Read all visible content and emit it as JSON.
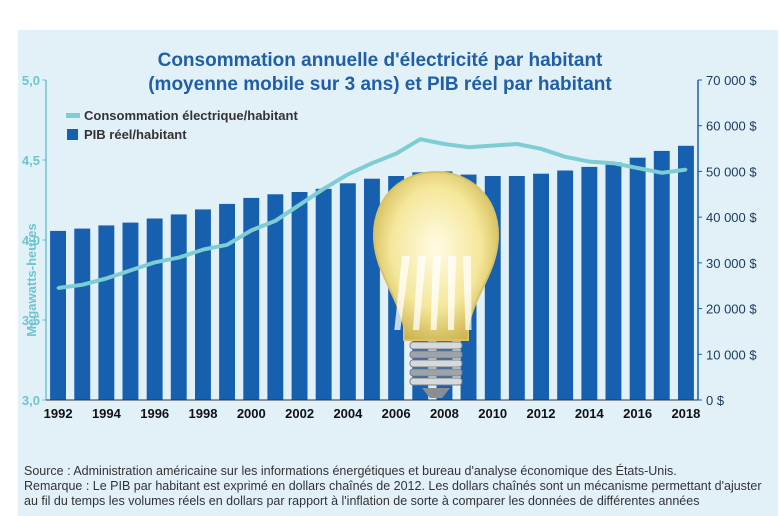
{
  "chart_data": {
    "type": "bar+line",
    "title_lines": [
      "Consommation annuelle d'électricité par habitant",
      "(moyenne mobile sur 3 ans) et PIB réel par habitant"
    ],
    "ylabel_left": "Mégawatts-heures",
    "left_ticks": [
      "3,0",
      "3,5",
      "4,0",
      "4,5",
      "5,0"
    ],
    "ylim_left": [
      3.0,
      5.0
    ],
    "right_ticks": [
      "0 $",
      "10 000 $",
      "20 000 $",
      "30 000 $",
      "40 000 $",
      "50 000 $",
      "60 000 $",
      "70 000 $"
    ],
    "ylim_right": [
      0,
      70000
    ],
    "x_tick_labels": [
      "1992",
      "1994",
      "1996",
      "1998",
      "2000",
      "2002",
      "2004",
      "2006",
      "2008",
      "2010",
      "2012",
      "2014",
      "2016",
      "2018"
    ],
    "years": [
      1992,
      1993,
      1994,
      1995,
      1996,
      1997,
      1998,
      1999,
      2000,
      2001,
      2002,
      2003,
      2004,
      2005,
      2006,
      2007,
      2008,
      2009,
      2010,
      2011,
      2012,
      2013,
      2014,
      2015,
      2016,
      2017,
      2018
    ],
    "legend_placement": "top-left",
    "colors": {
      "bars": "#1760b0",
      "line": "#7fcdd4",
      "left_axis": "#6fc4cf",
      "title": "#1f5ea8"
    },
    "series": [
      {
        "name": "Consommation électrique/habitant",
        "kind": "line",
        "axis": "left",
        "values": [
          3.7,
          3.72,
          3.76,
          3.81,
          3.86,
          3.89,
          3.94,
          3.97,
          4.06,
          4.12,
          4.22,
          4.32,
          4.41,
          4.48,
          4.54,
          4.63,
          4.6,
          4.58,
          4.59,
          4.6,
          4.57,
          4.52,
          4.49,
          4.48,
          4.45,
          4.42,
          4.44
        ]
      },
      {
        "name": "PIB réel/habitant",
        "kind": "bar",
        "axis": "right",
        "values": [
          37000,
          37500,
          38200,
          38800,
          39700,
          40600,
          41700,
          42900,
          44200,
          45000,
          45500,
          46200,
          47400,
          48400,
          49000,
          49800,
          50000,
          49300,
          49000,
          49000,
          49500,
          50200,
          51000,
          52000,
          53000,
          54500,
          55600
        ]
      }
    ]
  },
  "notes": {
    "source": "Source : Administration américaine sur les informations énergétiques et bureau d'analyse économique des États-Unis.",
    "remark_line1": "Remarque : Le PIB par habitant est exprimé en dollars chaînés de 2012. Les dollars chaînés sont un mécanisme permettant d'ajuster",
    "remark_line2": "au fil du temps les volumes réels en dollars par rapport à l'inflation de sorte à comparer les données de différentes années"
  },
  "illustration": {
    "icon": "light-bulb-icon"
  }
}
